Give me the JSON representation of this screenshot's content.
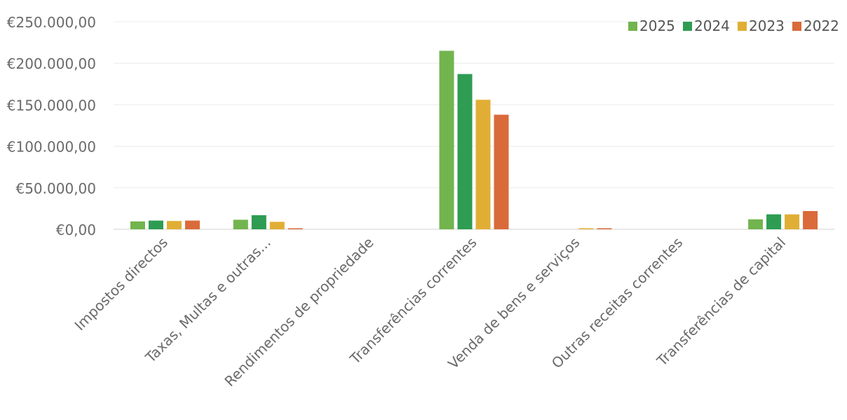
{
  "chart_data": {
    "type": "bar",
    "title": "",
    "xlabel": "",
    "ylabel": "",
    "categories": [
      "Impostos directos",
      "Taxas, Multas e outras...",
      "Rendimentos de propriedade",
      "Transferências correntes",
      "Venda de bens e serviços",
      "Outras receitas correntes",
      "Transferências de capital"
    ],
    "series": [
      {
        "name": "2025",
        "color": "#72b44e",
        "values": [
          9500,
          11500,
          0,
          215000,
          0,
          0,
          12000
        ]
      },
      {
        "name": "2024",
        "color": "#2e9c52",
        "values": [
          10500,
          17000,
          0,
          187000,
          0,
          0,
          18000
        ]
      },
      {
        "name": "2023",
        "color": "#e1ae35",
        "values": [
          10000,
          9000,
          0,
          156000,
          500,
          0,
          18000
        ]
      },
      {
        "name": "2022",
        "color": "#da6a3a",
        "values": [
          10500,
          1200,
          0,
          138000,
          1000,
          0,
          22000
        ]
      }
    ],
    "ylim": [
      0,
      250000
    ],
    "yticks": [
      0,
      50000,
      100000,
      150000,
      200000,
      250000
    ],
    "ytick_labels": [
      "€0,00",
      "€50.000,00",
      "€100.000,00",
      "€150.000,00",
      "€200.000,00",
      "€250.000,00"
    ],
    "grid": true,
    "legend_position": "top-right"
  }
}
